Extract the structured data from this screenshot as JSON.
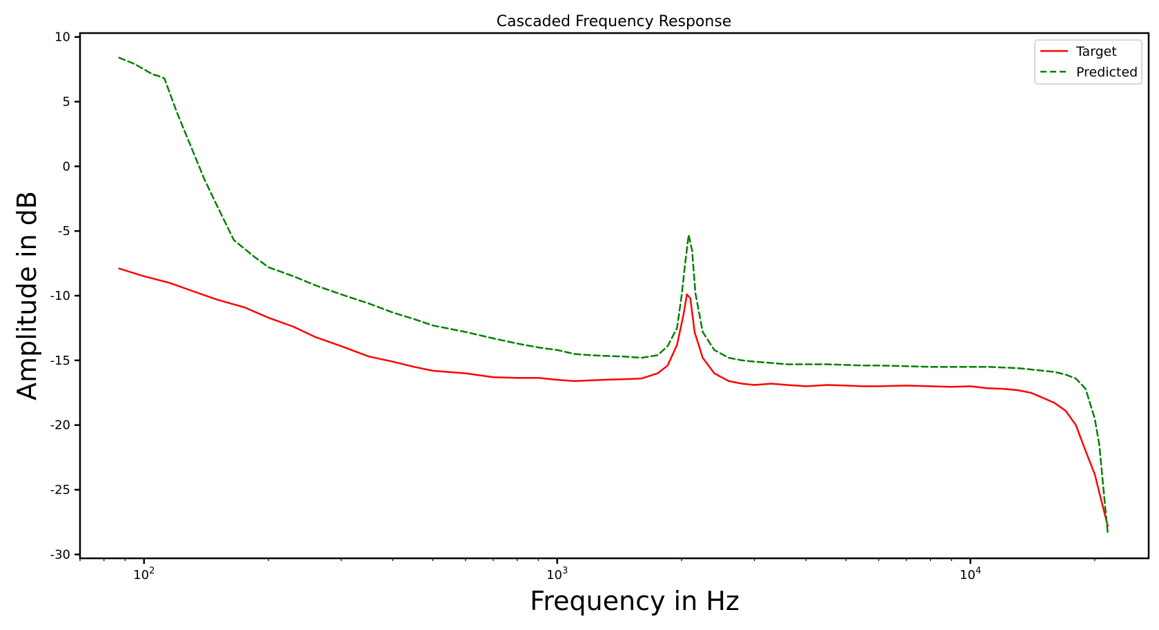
{
  "chart_data": {
    "type": "line",
    "title": "Cascaded Frequency Response",
    "xlabel": "Frequency in Hz",
    "ylabel": "Amplitude in dB",
    "xscale": "log",
    "xlim": [
      70,
      27000
    ],
    "ylim": [
      -30.3,
      10.3
    ],
    "grid": false,
    "legend_position": "top-right",
    "yticks": [
      10,
      5,
      0,
      -5,
      -10,
      -15,
      -20,
      -25,
      -30
    ],
    "xticks": [
      {
        "value": 100,
        "base": "10",
        "exp": "2"
      },
      {
        "value": 1000,
        "base": "10",
        "exp": "3"
      },
      {
        "value": 10000,
        "base": "10",
        "exp": "4"
      }
    ],
    "series": [
      {
        "name": "Target",
        "color": "#ff0000",
        "style": "solid",
        "x": [
          87,
          100,
          115,
          130,
          150,
          175,
          200,
          230,
          260,
          300,
          350,
          400,
          450,
          500,
          600,
          700,
          800,
          900,
          1000,
          1100,
          1200,
          1300,
          1450,
          1600,
          1750,
          1850,
          1950,
          2020,
          2060,
          2100,
          2150,
          2250,
          2400,
          2600,
          2800,
          3000,
          3300,
          3600,
          4000,
          4500,
          5000,
          5500,
          6000,
          7000,
          8000,
          9000,
          10000,
          11000,
          12000,
          13000,
          14000,
          15000,
          16000,
          17000,
          18000,
          19000,
          20000,
          20500,
          21000,
          21500
        ],
        "y": [
          -7.9,
          -8.5,
          -9.0,
          -9.6,
          -10.3,
          -10.9,
          -11.7,
          -12.4,
          -13.2,
          -13.9,
          -14.7,
          -15.1,
          -15.5,
          -15.8,
          -16.0,
          -16.3,
          -16.35,
          -16.35,
          -16.5,
          -16.6,
          -16.55,
          -16.5,
          -16.45,
          -16.4,
          -16.0,
          -15.4,
          -13.8,
          -11.5,
          -9.9,
          -10.2,
          -12.8,
          -14.8,
          -16.0,
          -16.6,
          -16.8,
          -16.9,
          -16.8,
          -16.9,
          -17.0,
          -16.9,
          -16.95,
          -17.0,
          -17.0,
          -16.95,
          -17.0,
          -17.05,
          -17.0,
          -17.15,
          -17.2,
          -17.3,
          -17.5,
          -17.9,
          -18.3,
          -18.9,
          -20.0,
          -22.0,
          -23.8,
          -25.2,
          -26.5,
          -27.8
        ]
      },
      {
        "name": "Predicted",
        "color": "#007f00",
        "style": "dashed",
        "x": [
          87,
          95,
          100,
          105,
          108,
          112,
          120,
          130,
          140,
          150,
          165,
          185,
          200,
          230,
          260,
          300,
          350,
          400,
          450,
          500,
          600,
          700,
          800,
          900,
          1000,
          1100,
          1200,
          1300,
          1450,
          1600,
          1750,
          1850,
          1950,
          2000,
          2040,
          2080,
          2120,
          2160,
          2250,
          2400,
          2600,
          2800,
          3000,
          3300,
          3600,
          4000,
          4500,
          5000,
          5500,
          6000,
          7000,
          8000,
          9000,
          10000,
          11000,
          12000,
          13000,
          14000,
          15000,
          16000,
          17000,
          18000,
          19000,
          20000,
          20500,
          21000,
          21500
        ],
        "y": [
          8.4,
          7.9,
          7.5,
          7.1,
          7.0,
          6.8,
          4.2,
          1.5,
          -1.0,
          -3.0,
          -5.7,
          -7.0,
          -7.8,
          -8.5,
          -9.2,
          -9.9,
          -10.6,
          -11.3,
          -11.8,
          -12.3,
          -12.8,
          -13.3,
          -13.7,
          -14.0,
          -14.2,
          -14.5,
          -14.6,
          -14.65,
          -14.7,
          -14.8,
          -14.6,
          -13.9,
          -12.5,
          -10.0,
          -7.5,
          -5.3,
          -6.5,
          -9.8,
          -12.8,
          -14.2,
          -14.8,
          -15.0,
          -15.1,
          -15.2,
          -15.3,
          -15.3,
          -15.3,
          -15.35,
          -15.4,
          -15.4,
          -15.45,
          -15.5,
          -15.5,
          -15.5,
          -15.5,
          -15.55,
          -15.6,
          -15.7,
          -15.8,
          -15.9,
          -16.1,
          -16.4,
          -17.2,
          -19.5,
          -21.5,
          -25.0,
          -28.4
        ]
      }
    ]
  }
}
